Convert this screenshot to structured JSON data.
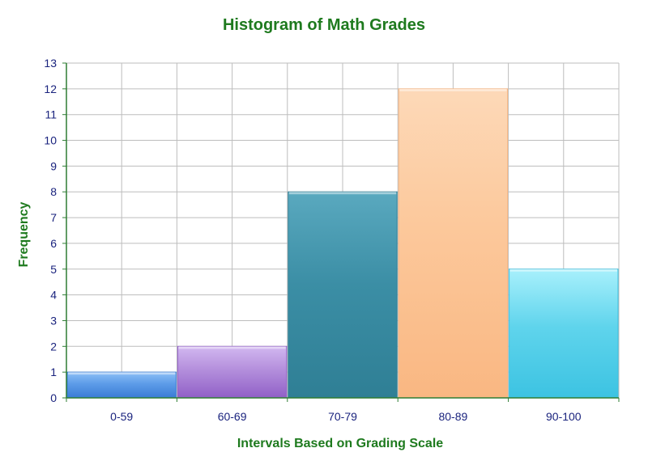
{
  "chart_data": {
    "type": "bar",
    "title": "Histogram of Math Grades",
    "xlabel": "Intervals Based on Grading Scale",
    "ylabel": "Frequency",
    "categories": [
      "0-59",
      "60-69",
      "70-79",
      "80-89",
      "90-100"
    ],
    "values": [
      1,
      2,
      8,
      12,
      5
    ],
    "ylim": [
      0,
      13
    ],
    "yticks": [
      "0",
      "1",
      "2",
      "3",
      "4",
      "5",
      "6",
      "7",
      "8",
      "9",
      "10",
      "11",
      "12",
      "13"
    ],
    "grid": true,
    "legend": "none",
    "colors": {
      "title": "#1e7a1e",
      "axis_title": "#1e7a1e",
      "tick_label": "#1a237e",
      "grid": "#bdbdbd",
      "bars": [
        "#5d9ce8",
        "#b48fdc",
        "#3b8ea5",
        "#fcc89b",
        "#5fd4ec"
      ],
      "bars_top": [
        "#8ec0f7",
        "#d2b8f0",
        "#5aa9bf",
        "#fdd9b8",
        "#a8f0fc"
      ],
      "bars_bottom": [
        "#3a7cd5",
        "#9160c7",
        "#2f7f95",
        "#f9b782",
        "#3cc3e2"
      ]
    }
  }
}
